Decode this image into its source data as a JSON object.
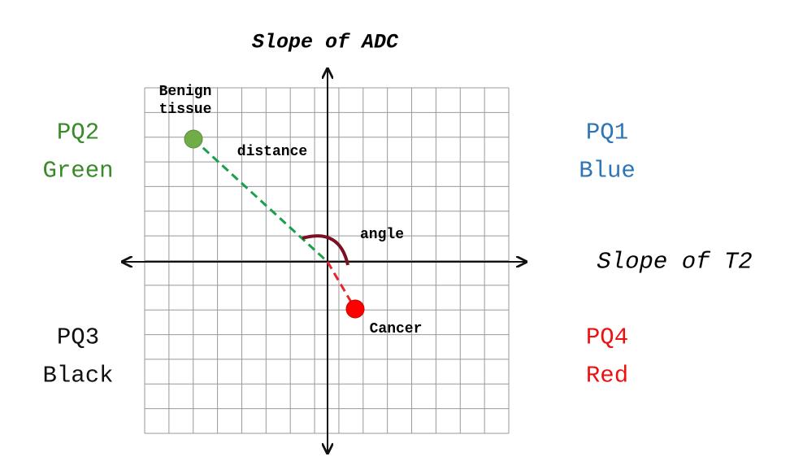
{
  "axes": {
    "y_label": "Slope of ADC",
    "x_label": "Slope of T2"
  },
  "quadrants": [
    {
      "name": "PQ1",
      "color_name": "Blue"
    },
    {
      "name": "PQ2",
      "color_name": "Green"
    },
    {
      "name": "PQ3",
      "color_name": "Black"
    },
    {
      "name": "PQ4",
      "color_name": "Red"
    }
  ],
  "points": [
    {
      "label_lines": [
        "Benign",
        "tissue"
      ]
    },
    {
      "label_lines": [
        "Cancer"
      ]
    }
  ],
  "annotations": {
    "distance": "distance",
    "angle": "angle"
  }
}
